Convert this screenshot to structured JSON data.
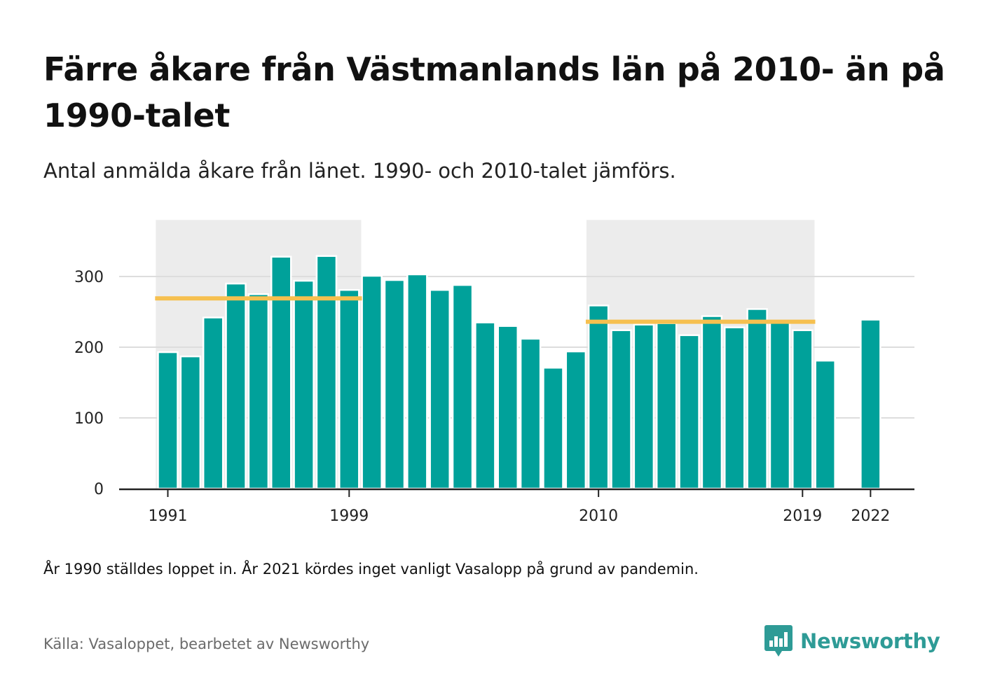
{
  "header": {
    "title": "Färre åkare från Västmanlands län på 2010- än på 1990-talet",
    "subtitle": "Antal anmälda åkare från länet. 1990- och 2010-talet jämförs."
  },
  "footer": {
    "note": "År 1990 ställdes loppet in. År 2021 kördes inget vanligt Vasalopp på grund av pandemin.",
    "source": "Källa: Vasaloppet, bearbetet av Newsworthy",
    "brand": "Newsworthy"
  },
  "colors": {
    "bar": "#00a19a",
    "average_line": "#f6c04f",
    "period_shade": "#ececec",
    "grid": "#dddddd",
    "brand": "#2e9b96"
  },
  "chart_data": {
    "type": "bar",
    "title": "Färre åkare från Västmanlands län på 2010- än på 1990-talet",
    "subtitle": "Antal anmälda åkare från länet. 1990- och 2010-talet jämförs.",
    "xlabel": "",
    "ylabel": "",
    "ylim": [
      0,
      380
    ],
    "yticks": [
      0,
      100,
      200,
      300
    ],
    "xtick_labels": [
      "1991",
      "1999",
      "2010",
      "2019",
      "2022"
    ],
    "grid": "horizontal",
    "data": [
      {
        "year": 1991,
        "value": 193
      },
      {
        "year": 1992,
        "value": 187
      },
      {
        "year": 1993,
        "value": 242
      },
      {
        "year": 1994,
        "value": 290
      },
      {
        "year": 1995,
        "value": 275
      },
      {
        "year": 1996,
        "value": 328
      },
      {
        "year": 1997,
        "value": 294
      },
      {
        "year": 1998,
        "value": 329
      },
      {
        "year": 1999,
        "value": 281
      },
      {
        "year": 2000,
        "value": 301
      },
      {
        "year": 2001,
        "value": 295
      },
      {
        "year": 2002,
        "value": 303
      },
      {
        "year": 2003,
        "value": 281
      },
      {
        "year": 2004,
        "value": 288
      },
      {
        "year": 2005,
        "value": 235
      },
      {
        "year": 2006,
        "value": 230
      },
      {
        "year": 2007,
        "value": 212
      },
      {
        "year": 2008,
        "value": 171
      },
      {
        "year": 2009,
        "value": 194
      },
      {
        "year": 2010,
        "value": 259
      },
      {
        "year": 2011,
        "value": 224
      },
      {
        "year": 2012,
        "value": 232
      },
      {
        "year": 2013,
        "value": 234
      },
      {
        "year": 2014,
        "value": 217
      },
      {
        "year": 2015,
        "value": 244
      },
      {
        "year": 2016,
        "value": 228
      },
      {
        "year": 2017,
        "value": 254
      },
      {
        "year": 2018,
        "value": 237
      },
      {
        "year": 2019,
        "value": 224
      },
      {
        "year": 2020,
        "value": 181
      },
      {
        "year": 2022,
        "value": 239
      }
    ],
    "periods": [
      {
        "from": 1991,
        "to": 1999,
        "average": 269
      },
      {
        "from": 2010,
        "to": 2019,
        "average": 236
      }
    ]
  }
}
